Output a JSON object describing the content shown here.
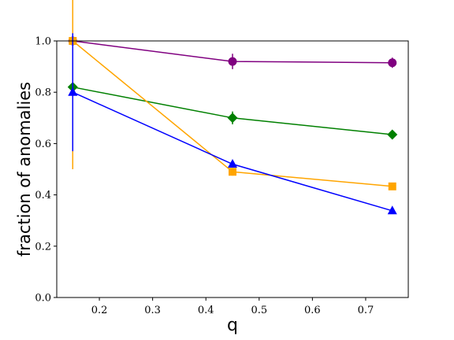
{
  "chart_data": {
    "type": "line",
    "xlabel": "q",
    "ylabel": "fraction of anomalies",
    "xlim": [
      0.12,
      0.78
    ],
    "ylim": [
      0.0,
      1.0
    ],
    "xticks": [
      0.2,
      0.3,
      0.4,
      0.5,
      0.6,
      0.7
    ],
    "yticks": [
      0.0,
      0.2,
      0.4,
      0.6,
      0.8,
      1.0
    ],
    "grid": false,
    "series": [
      {
        "color": "#800080",
        "marker": "circle",
        "x": [
          0.15,
          0.45,
          0.75
        ],
        "y": [
          1.0,
          0.92,
          0.915
        ],
        "yerr": [
          0.0,
          0.03,
          0.02
        ]
      },
      {
        "color": "#008000",
        "marker": "diamond",
        "x": [
          0.15,
          0.45,
          0.75
        ],
        "y": [
          0.82,
          0.7,
          0.635
        ],
        "yerr": [
          0.0,
          0.025,
          0.01
        ]
      },
      {
        "color": "#ffa500",
        "marker": "square",
        "x": [
          0.15,
          0.45,
          0.75
        ],
        "y": [
          1.0,
          0.49,
          0.433
        ],
        "yerr": [
          0.5,
          0.015,
          0.01
        ]
      },
      {
        "color": "#0000ff",
        "marker": "triangle",
        "x": [
          0.15,
          0.45,
          0.75
        ],
        "y": [
          0.8,
          0.52,
          0.338
        ],
        "yerr": [
          0.23,
          0.01,
          0.01
        ]
      }
    ]
  }
}
